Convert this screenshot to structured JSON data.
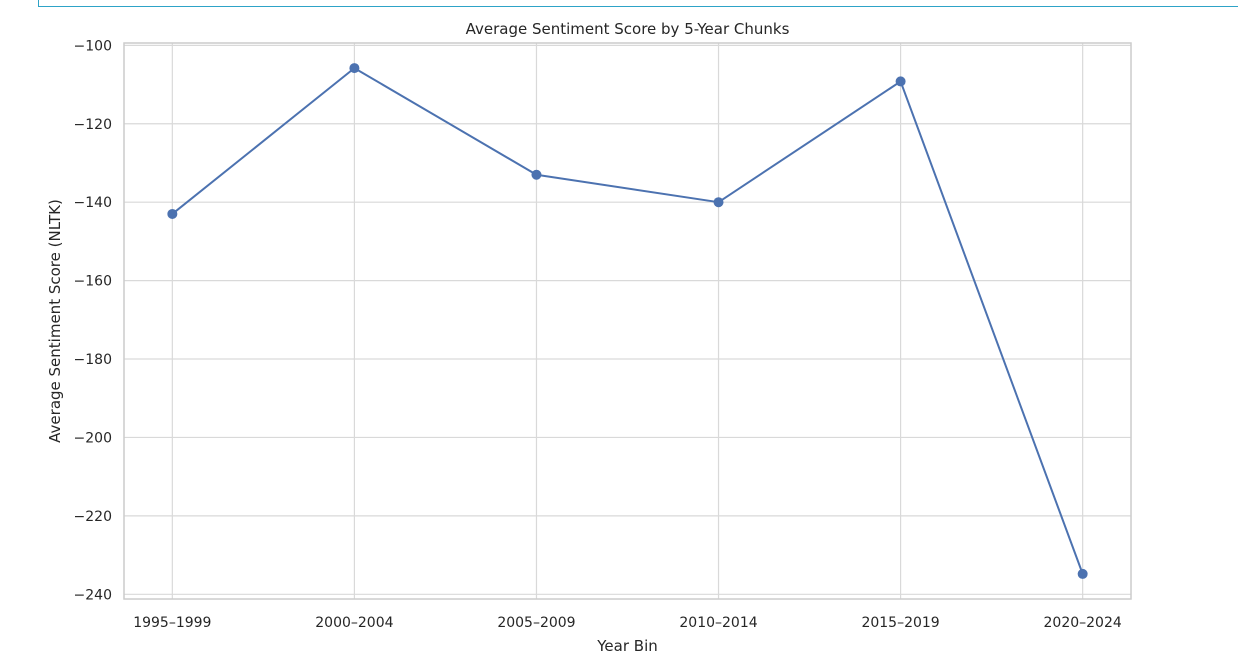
{
  "chart_data": {
    "type": "line",
    "title": "Average Sentiment Score by 5-Year Chunks",
    "xlabel": "Year Bin",
    "ylabel": "Average Sentiment Score (NLTK)",
    "categories": [
      "1995–1999",
      "2000–2004",
      "2005–2009",
      "2010–2014",
      "2015–2019",
      "2020–2024"
    ],
    "series": [
      {
        "values": [
          -143.0,
          -105.8,
          -133.0,
          -140.0,
          -109.2,
          -234.8
        ],
        "color": "#4c72b0"
      }
    ],
    "ylim": [
      -241.2,
      -99.4
    ],
    "yticks": [
      -100,
      -120,
      -140,
      -160,
      -180,
      -200,
      -220,
      -240
    ],
    "ytick_labels": [
      "−100",
      "−120",
      "−140",
      "−160",
      "−180",
      "−200",
      "−220",
      "−240"
    ],
    "grid": true,
    "colors": {
      "grid": "#d9d9d9",
      "spine": "#cccccc",
      "text": "#262626",
      "frame_accent": "#2ea3c7"
    }
  }
}
